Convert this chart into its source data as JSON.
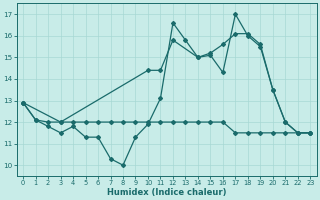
{
  "xlabel": "Humidex (Indice chaleur)",
  "background_color": "#c8ece8",
  "grid_color": "#a8d8d4",
  "line_color": "#1a6b6b",
  "xlim": [
    -0.5,
    23.5
  ],
  "ylim": [
    9.5,
    17.5
  ],
  "yticks": [
    10,
    11,
    12,
    13,
    14,
    15,
    16,
    17
  ],
  "xticks": [
    0,
    1,
    2,
    3,
    4,
    5,
    6,
    7,
    8,
    9,
    10,
    11,
    12,
    13,
    14,
    15,
    16,
    17,
    18,
    19,
    20,
    21,
    22,
    23
  ],
  "line1_x": [
    0,
    1,
    2,
    3,
    4,
    5,
    6,
    7,
    8,
    9,
    10,
    11,
    12,
    13,
    14,
    15,
    16,
    17,
    18,
    19,
    20,
    21,
    22,
    23
  ],
  "line1_y": [
    12.9,
    12.1,
    11.8,
    11.5,
    11.8,
    11.3,
    11.3,
    10.3,
    10.0,
    11.3,
    11.9,
    13.1,
    16.6,
    15.8,
    15.0,
    15.1,
    14.3,
    17.0,
    16.0,
    15.5,
    13.5,
    12.0,
    11.5,
    11.5
  ],
  "line2_x": [
    0,
    3,
    10,
    11,
    12,
    14,
    15,
    16,
    17,
    18,
    19,
    20,
    21,
    22,
    23
  ],
  "line2_y": [
    12.9,
    12.0,
    14.4,
    14.4,
    15.8,
    15.0,
    15.2,
    15.6,
    16.1,
    16.1,
    15.6,
    13.5,
    12.0,
    11.5,
    11.5
  ],
  "line3_x": [
    0,
    1,
    2,
    3,
    4,
    5,
    6,
    7,
    8,
    9,
    10,
    11,
    12,
    13,
    14,
    15,
    16,
    17,
    18,
    19,
    20,
    21,
    22,
    23
  ],
  "line3_y": [
    12.9,
    12.1,
    12.0,
    12.0,
    12.0,
    12.0,
    12.0,
    12.0,
    12.0,
    12.0,
    12.0,
    12.0,
    12.0,
    12.0,
    12.0,
    12.0,
    12.0,
    11.5,
    11.5,
    11.5,
    11.5,
    11.5,
    11.5,
    11.5
  ]
}
